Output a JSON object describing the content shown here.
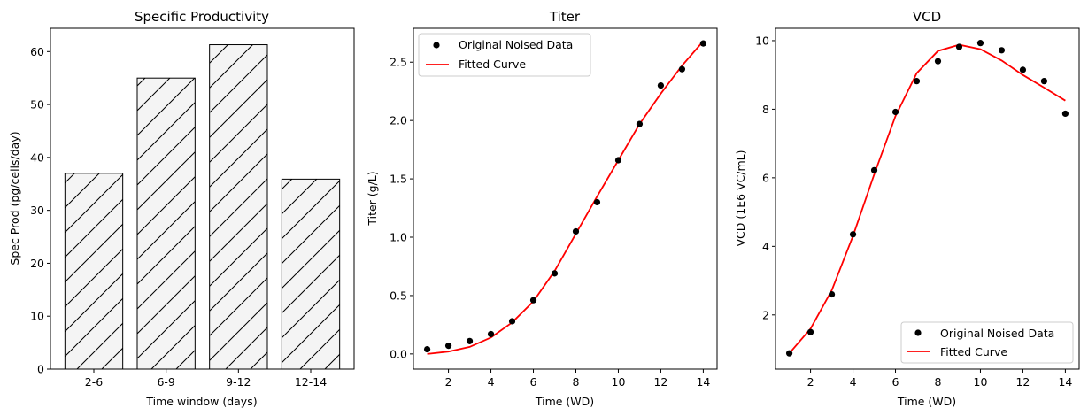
{
  "chart_data": [
    {
      "type": "bar",
      "title": "Specific Productivity",
      "xlabel": "Time window (days)",
      "ylabel": "Spec Prod (pg/cells/day)",
      "categories": [
        "2-6",
        "6-9",
        "9-12",
        "12-14"
      ],
      "values": [
        37.0,
        55.0,
        61.3,
        35.9
      ],
      "ylim": [
        0,
        64.4
      ],
      "yticks": [
        0,
        10,
        20,
        30,
        40,
        50,
        60
      ],
      "bar_fill": "#f4f4f4",
      "bar_edge": "#000000",
      "hatch": "/",
      "grid": false
    },
    {
      "type": "line",
      "title": "Titer",
      "xlabel": "Time (WD)",
      "ylabel": "Titer (g/L)",
      "xlim": [
        0.35,
        14.65
      ],
      "ylim": [
        -0.13,
        2.79
      ],
      "xticks": [
        2,
        4,
        6,
        8,
        10,
        12,
        14
      ],
      "yticks": [
        0.0,
        0.5,
        1.0,
        1.5,
        2.0,
        2.5
      ],
      "ytick_labels": [
        "0.0",
        "0.5",
        "1.0",
        "1.5",
        "2.0",
        "2.5"
      ],
      "legend_position": "upper-left",
      "grid": false,
      "series": [
        {
          "name": "Original Noised Data",
          "kind": "scatter",
          "color": "#000000",
          "x": [
            1,
            2,
            3,
            4,
            5,
            6,
            7,
            8,
            9,
            10,
            11,
            12,
            13,
            14
          ],
          "y": [
            0.04,
            0.07,
            0.11,
            0.17,
            0.28,
            0.46,
            0.69,
            1.05,
            1.3,
            1.66,
            1.97,
            2.3,
            2.44,
            2.66
          ]
        },
        {
          "name": "Fitted Curve",
          "kind": "line",
          "color": "#ff0000",
          "x": [
            1,
            2,
            3,
            4,
            5,
            6,
            7,
            8,
            9,
            10,
            11,
            12,
            13,
            14
          ],
          "y": [
            0.0,
            0.02,
            0.06,
            0.14,
            0.27,
            0.45,
            0.71,
            1.03,
            1.35,
            1.66,
            1.97,
            2.23,
            2.47,
            2.68
          ]
        }
      ]
    },
    {
      "type": "line",
      "title": "VCD",
      "xlabel": "Time (WD)",
      "ylabel": "VCD (1E6 VC/mL)",
      "xlim": [
        0.35,
        14.65
      ],
      "ylim": [
        0.42,
        10.36
      ],
      "xticks": [
        2,
        4,
        6,
        8,
        10,
        12,
        14
      ],
      "yticks": [
        2,
        4,
        6,
        8,
        10
      ],
      "ytick_labels": [
        "2",
        "4",
        "6",
        "8",
        "10"
      ],
      "legend_position": "lower-right",
      "grid": false,
      "series": [
        {
          "name": "Original Noised Data",
          "kind": "scatter",
          "color": "#000000",
          "x": [
            1,
            2,
            3,
            4,
            5,
            6,
            7,
            8,
            9,
            10,
            11,
            12,
            13,
            14
          ],
          "y": [
            0.88,
            1.5,
            2.6,
            4.35,
            6.22,
            7.92,
            8.82,
            9.4,
            9.82,
            9.93,
            9.72,
            9.15,
            8.82,
            7.87
          ]
        },
        {
          "name": "Fitted Curve",
          "kind": "line",
          "color": "#ff0000",
          "x": [
            1,
            2,
            3,
            4,
            5,
            6,
            7,
            8,
            9,
            10,
            11,
            12,
            13,
            14
          ],
          "y": [
            0.88,
            1.6,
            2.72,
            4.3,
            6.1,
            7.8,
            9.05,
            9.7,
            9.88,
            9.75,
            9.42,
            9.0,
            8.63,
            8.25
          ]
        }
      ]
    }
  ]
}
